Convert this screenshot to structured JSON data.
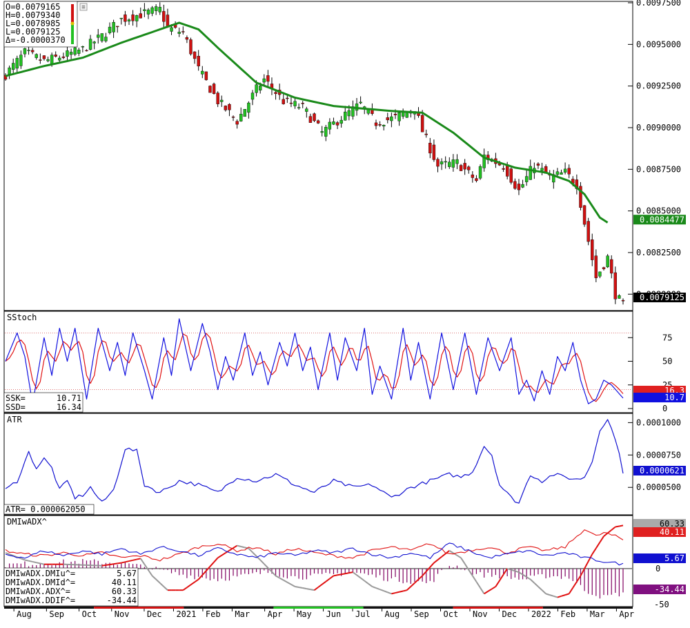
{
  "ohlc_legend": [
    {
      "label": "O=0.0079165"
    },
    {
      "label": "H=0.0079340"
    },
    {
      "label": "L=0.0078985"
    },
    {
      "label": "L=0.0079125"
    },
    {
      "label": "Δ=-0.0000370"
    }
  ],
  "colors": {
    "up": "#22c022",
    "down": "#d01010",
    "ma": "#1a8a1a",
    "stoch_k": "#1010e0",
    "stoch_d": "#e01010",
    "atr": "#1010d0",
    "dmi_plus": "#1010d0",
    "dmi_minus": "#e01010",
    "adx": "#999999",
    "ddif": "#800060"
  },
  "chart_data": [
    {
      "type": "candlestick",
      "panel": "price",
      "ylim": [
        0.00791,
        0.00975
      ],
      "y_ticks": [
        "0.0097500",
        "0.0095000",
        "0.0092500",
        "0.0090000",
        "0.0087500",
        "0.0085000",
        "0.0082500",
        "0.0080000"
      ],
      "price_anchors": [
        [
          0,
          0.00932
        ],
        [
          5,
          0.00945
        ],
        [
          10,
          0.0094
        ],
        [
          15,
          0.00943
        ],
        [
          20,
          0.00947
        ],
        [
          25,
          0.00955
        ],
        [
          30,
          0.00965
        ],
        [
          35,
          0.00968
        ],
        [
          40,
          0.00971
        ],
        [
          42,
          0.0096
        ],
        [
          46,
          0.00957
        ],
        [
          50,
          0.00935
        ],
        [
          55,
          0.00916
        ],
        [
          60,
          0.00904
        ],
        [
          65,
          0.00923
        ],
        [
          67,
          0.00929
        ],
        [
          72,
          0.00916
        ],
        [
          77,
          0.00912
        ],
        [
          82,
          0.00897
        ],
        [
          87,
          0.00906
        ],
        [
          92,
          0.00914
        ],
        [
          96,
          0.00903
        ],
        [
          101,
          0.00906
        ],
        [
          106,
          0.00912
        ],
        [
          108,
          0.00898
        ],
        [
          112,
          0.00877
        ],
        [
          117,
          0.00879
        ],
        [
          122,
          0.00868
        ],
        [
          124,
          0.00883
        ],
        [
          129,
          0.00877
        ],
        [
          133,
          0.00862
        ],
        [
          137,
          0.00878
        ],
        [
          141,
          0.0087
        ],
        [
          145,
          0.00873
        ],
        [
          148,
          0.00866
        ],
        [
          150,
          0.00843
        ],
        [
          153,
          0.0081
        ],
        [
          156,
          0.00822
        ],
        [
          158,
          0.008
        ],
        [
          160,
          0.00793
        ]
      ],
      "ma_anchors": [
        [
          0,
          0.00931
        ],
        [
          10,
          0.00937
        ],
        [
          20,
          0.00942
        ],
        [
          30,
          0.00951
        ],
        [
          40,
          0.00959
        ],
        [
          45,
          0.00963
        ],
        [
          50,
          0.00959
        ],
        [
          55,
          0.00948
        ],
        [
          65,
          0.00927
        ],
        [
          75,
          0.00918
        ],
        [
          85,
          0.00913
        ],
        [
          100,
          0.0091
        ],
        [
          108,
          0.00909
        ],
        [
          116,
          0.00897
        ],
        [
          124,
          0.00882
        ],
        [
          132,
          0.00876
        ],
        [
          140,
          0.00873
        ],
        [
          146,
          0.00868
        ],
        [
          150,
          0.0086
        ],
        [
          154,
          0.00846
        ],
        [
          156,
          0.00843
        ]
      ],
      "last_ma_label": "0.0084477",
      "last_price_label": "0.0079125"
    },
    {
      "type": "line",
      "panel": "stochastic",
      "title": "SStoch",
      "ylim": [
        0,
        100
      ],
      "y_ticks": [
        "75",
        "50",
        "25",
        "0"
      ],
      "levels": [
        80,
        20
      ],
      "k_anchors": [
        [
          0,
          50
        ],
        [
          3,
          80
        ],
        [
          5,
          55
        ],
        [
          7,
          5
        ],
        [
          10,
          75
        ],
        [
          12,
          35
        ],
        [
          14,
          85
        ],
        [
          16,
          50
        ],
        [
          18,
          85
        ],
        [
          21,
          10
        ],
        [
          24,
          85
        ],
        [
          27,
          40
        ],
        [
          29,
          70
        ],
        [
          31,
          35
        ],
        [
          33,
          80
        ],
        [
          36,
          40
        ],
        [
          38,
          10
        ],
        [
          41,
          75
        ],
        [
          43,
          35
        ],
        [
          45,
          95
        ],
        [
          48,
          40
        ],
        [
          51,
          90
        ],
        [
          53,
          60
        ],
        [
          55,
          20
        ],
        [
          57,
          55
        ],
        [
          59,
          30
        ],
        [
          62,
          80
        ],
        [
          64,
          35
        ],
        [
          66,
          60
        ],
        [
          68,
          25
        ],
        [
          71,
          70
        ],
        [
          73,
          45
        ],
        [
          75,
          80
        ],
        [
          77,
          40
        ],
        [
          79,
          65
        ],
        [
          81,
          20
        ],
        [
          84,
          80
        ],
        [
          86,
          30
        ],
        [
          88,
          75
        ],
        [
          91,
          40
        ],
        [
          93,
          85
        ],
        [
          95,
          15
        ],
        [
          97,
          45
        ],
        [
          100,
          10
        ],
        [
          103,
          85
        ],
        [
          105,
          30
        ],
        [
          107,
          70
        ],
        [
          110,
          10
        ],
        [
          113,
          80
        ],
        [
          116,
          20
        ],
        [
          119,
          80
        ],
        [
          122,
          15
        ],
        [
          125,
          75
        ],
        [
          128,
          40
        ],
        [
          131,
          75
        ],
        [
          133,
          15
        ],
        [
          135,
          30
        ],
        [
          137,
          8
        ],
        [
          139,
          40
        ],
        [
          141,
          15
        ],
        [
          143,
          55
        ],
        [
          145,
          40
        ],
        [
          147,
          70
        ],
        [
          149,
          30
        ],
        [
          151,
          5
        ],
        [
          153,
          10
        ],
        [
          155,
          30
        ],
        [
          157,
          25
        ],
        [
          160,
          11
        ]
      ],
      "last_k_label": "10.7",
      "last_d_label": "16.3",
      "readout": [
        {
          "label": "SSK=",
          "value": "10.71"
        },
        {
          "label": "SSD=",
          "value": "16.34"
        }
      ]
    },
    {
      "type": "line",
      "panel": "atr",
      "title": "ATR",
      "ylim": [
        3.2e-05,
        0.000105
      ],
      "y_ticks": [
        "0.0001000",
        "0.0000750",
        "0.0000500"
      ],
      "atr_anchors": [
        [
          0,
          4.8e-05
        ],
        [
          3,
          5.5e-05
        ],
        [
          6,
          7.7e-05
        ],
        [
          8,
          6.5e-05
        ],
        [
          10,
          7.2e-05
        ],
        [
          12,
          6.5e-05
        ],
        [
          14,
          4.8e-05
        ],
        [
          16,
          5.5e-05
        ],
        [
          18,
          4.2e-05
        ],
        [
          20,
          4.4e-05
        ],
        [
          22,
          5e-05
        ],
        [
          25,
          3.8e-05
        ],
        [
          28,
          4.8e-05
        ],
        [
          31,
          8e-05
        ],
        [
          34,
          7.8e-05
        ],
        [
          36,
          5.2e-05
        ],
        [
          40,
          4.6e-05
        ],
        [
          45,
          5.5e-05
        ],
        [
          50,
          5.2e-05
        ],
        [
          55,
          4.6e-05
        ],
        [
          60,
          5.8e-05
        ],
        [
          65,
          5.5e-05
        ],
        [
          70,
          6e-05
        ],
        [
          75,
          5.2e-05
        ],
        [
          80,
          4.6e-05
        ],
        [
          85,
          5.5e-05
        ],
        [
          90,
          5e-05
        ],
        [
          95,
          5.2e-05
        ],
        [
          100,
          4.2e-05
        ],
        [
          105,
          5e-05
        ],
        [
          110,
          5.5e-05
        ],
        [
          115,
          6e-05
        ],
        [
          118,
          5.8e-05
        ],
        [
          121,
          6.2e-05
        ],
        [
          124,
          8.2e-05
        ],
        [
          126,
          7.5e-05
        ],
        [
          128,
          5.2e-05
        ],
        [
          131,
          4.2e-05
        ],
        [
          133,
          3.8e-05
        ],
        [
          136,
          6e-05
        ],
        [
          139,
          5.5e-05
        ],
        [
          142,
          6e-05
        ],
        [
          145,
          5.8e-05
        ],
        [
          148,
          5.6e-05
        ],
        [
          150,
          5.8e-05
        ],
        [
          152,
          7e-05
        ],
        [
          154,
          9.5e-05
        ],
        [
          156,
          0.000102
        ],
        [
          158,
          8.8e-05
        ],
        [
          160,
          6.2e-05
        ]
      ],
      "last_label": "0.0000621",
      "readout": "ATR= 0.000062050"
    },
    {
      "type": "line",
      "panel": "dmi",
      "title": "DMIwADX^",
      "ylim": [
        -50,
        70
      ],
      "y_ticks": [
        "-50"
      ],
      "plus_anchors": [
        [
          0,
          20
        ],
        [
          5,
          15
        ],
        [
          10,
          25
        ],
        [
          15,
          18
        ],
        [
          20,
          25
        ],
        [
          25,
          20
        ],
        [
          30,
          28
        ],
        [
          35,
          20
        ],
        [
          40,
          30
        ],
        [
          45,
          25
        ],
        [
          50,
          18
        ],
        [
          55,
          28
        ],
        [
          60,
          20
        ],
        [
          65,
          15
        ],
        [
          70,
          22
        ],
        [
          75,
          18
        ],
        [
          80,
          25
        ],
        [
          85,
          22
        ],
        [
          90,
          28
        ],
        [
          95,
          20
        ],
        [
          100,
          15
        ],
        [
          105,
          22
        ],
        [
          110,
          15
        ],
        [
          115,
          35
        ],
        [
          120,
          25
        ],
        [
          125,
          15
        ],
        [
          130,
          20
        ],
        [
          135,
          25
        ],
        [
          140,
          18
        ],
        [
          145,
          22
        ],
        [
          150,
          15
        ],
        [
          155,
          10
        ],
        [
          160,
          6
        ]
      ],
      "minus_anchors": [
        [
          0,
          25
        ],
        [
          5,
          20
        ],
        [
          10,
          18
        ],
        [
          15,
          22
        ],
        [
          20,
          18
        ],
        [
          25,
          22
        ],
        [
          30,
          15
        ],
        [
          35,
          18
        ],
        [
          40,
          12
        ],
        [
          45,
          20
        ],
        [
          50,
          30
        ],
        [
          55,
          35
        ],
        [
          60,
          25
        ],
        [
          65,
          30
        ],
        [
          70,
          20
        ],
        [
          75,
          28
        ],
        [
          80,
          22
        ],
        [
          85,
          18
        ],
        [
          90,
          15
        ],
        [
          95,
          25
        ],
        [
          100,
          30
        ],
        [
          105,
          25
        ],
        [
          110,
          35
        ],
        [
          115,
          20
        ],
        [
          120,
          25
        ],
        [
          125,
          30
        ],
        [
          130,
          22
        ],
        [
          135,
          30
        ],
        [
          140,
          25
        ],
        [
          145,
          30
        ],
        [
          150,
          55
        ],
        [
          153,
          45
        ],
        [
          155,
          50
        ],
        [
          158,
          45
        ],
        [
          160,
          40
        ]
      ],
      "adx_anchors": [
        [
          0,
          22
        ],
        [
          5,
          12
        ],
        [
          10,
          6
        ],
        [
          15,
          6
        ],
        [
          20,
          5
        ],
        [
          25,
          4
        ],
        [
          30,
          8
        ],
        [
          35,
          14
        ],
        [
          38,
          -10
        ],
        [
          42,
          -30
        ],
        [
          46,
          -30
        ],
        [
          50,
          -15
        ],
        [
          55,
          15
        ],
        [
          60,
          32
        ],
        [
          63,
          28
        ],
        [
          66,
          12
        ],
        [
          70,
          -10
        ],
        [
          75,
          -25
        ],
        [
          80,
          -30
        ],
        [
          85,
          -10
        ],
        [
          90,
          -5
        ],
        [
          95,
          -25
        ],
        [
          100,
          -35
        ],
        [
          104,
          -30
        ],
        [
          108,
          -10
        ],
        [
          111,
          8
        ],
        [
          115,
          25
        ],
        [
          118,
          15
        ],
        [
          121,
          -10
        ],
        [
          124,
          -35
        ],
        [
          127,
          -25
        ],
        [
          130,
          0
        ],
        [
          133,
          -5
        ],
        [
          136,
          -15
        ],
        [
          140,
          -35
        ],
        [
          143,
          -40
        ],
        [
          146,
          -35
        ],
        [
          149,
          -10
        ],
        [
          152,
          20
        ],
        [
          155,
          45
        ],
        [
          158,
          58
        ],
        [
          160,
          60
        ]
      ],
      "ddif_anchors": [
        [
          0,
          5
        ],
        [
          10,
          8
        ],
        [
          20,
          10
        ],
        [
          30,
          8
        ],
        [
          38,
          0
        ],
        [
          45,
          -8
        ],
        [
          55,
          -15
        ],
        [
          62,
          -10
        ],
        [
          68,
          -5
        ],
        [
          75,
          -12
        ],
        [
          82,
          -10
        ],
        [
          90,
          -5
        ],
        [
          100,
          -15
        ],
        [
          110,
          -20
        ],
        [
          115,
          5
        ],
        [
          118,
          2
        ],
        [
          122,
          -8
        ],
        [
          128,
          -10
        ],
        [
          134,
          -15
        ],
        [
          140,
          -10
        ],
        [
          146,
          -12
        ],
        [
          150,
          -30
        ],
        [
          155,
          -40
        ],
        [
          160,
          -34
        ]
      ],
      "labels": {
        "adx": "60.33",
        "minus": "40.11",
        "plus": "5.67",
        "ddif": "-34.44"
      },
      "readout": [
        {
          "label": "DMIwADX.DMIu^=",
          "value": "5.67"
        },
        {
          "label": "DMIwADX.DMId^=",
          "value": "40.11"
        },
        {
          "label": "DMIwADX.ADX^=",
          "value": "60.33"
        },
        {
          "label": "DMIwADX.DDIF^=",
          "value": "-34.44"
        }
      ]
    }
  ],
  "x_axis": {
    "months": [
      {
        "label": "Aug",
        "bar": 3
      },
      {
        "label": "Sep",
        "bar": 13
      },
      {
        "label": "Oct",
        "bar": 23
      },
      {
        "label": "Nov",
        "bar": 33
      },
      {
        "label": "Dec",
        "bar": 43
      },
      {
        "label": "2021",
        "bar": 52
      },
      {
        "label": "Feb",
        "bar": 61
      },
      {
        "label": "Mar",
        "bar": 70
      },
      {
        "label": "Apr",
        "bar": 80
      },
      {
        "label": "May",
        "bar": 89
      },
      {
        "label": "Jun",
        "bar": 98
      },
      {
        "label": "Jul",
        "bar": 107
      },
      {
        "label": "Aug",
        "bar": 116
      },
      {
        "label": "Sep",
        "bar": 125
      },
      {
        "label": "Oct",
        "bar": 134
      },
      {
        "label": "Nov",
        "bar": 143
      },
      {
        "label": "Dec",
        "bar": 152
      },
      {
        "label": "2022",
        "bar": 161
      },
      {
        "label": "Feb",
        "bar": 170
      },
      {
        "label": "Mar",
        "bar": 179
      },
      {
        "label": "Apr",
        "bar": 188
      }
    ],
    "season_strip": [
      "#111111",
      "#d01010",
      "#111111",
      "#22c022",
      "#111111",
      "#d01010",
      "#111111"
    ]
  }
}
